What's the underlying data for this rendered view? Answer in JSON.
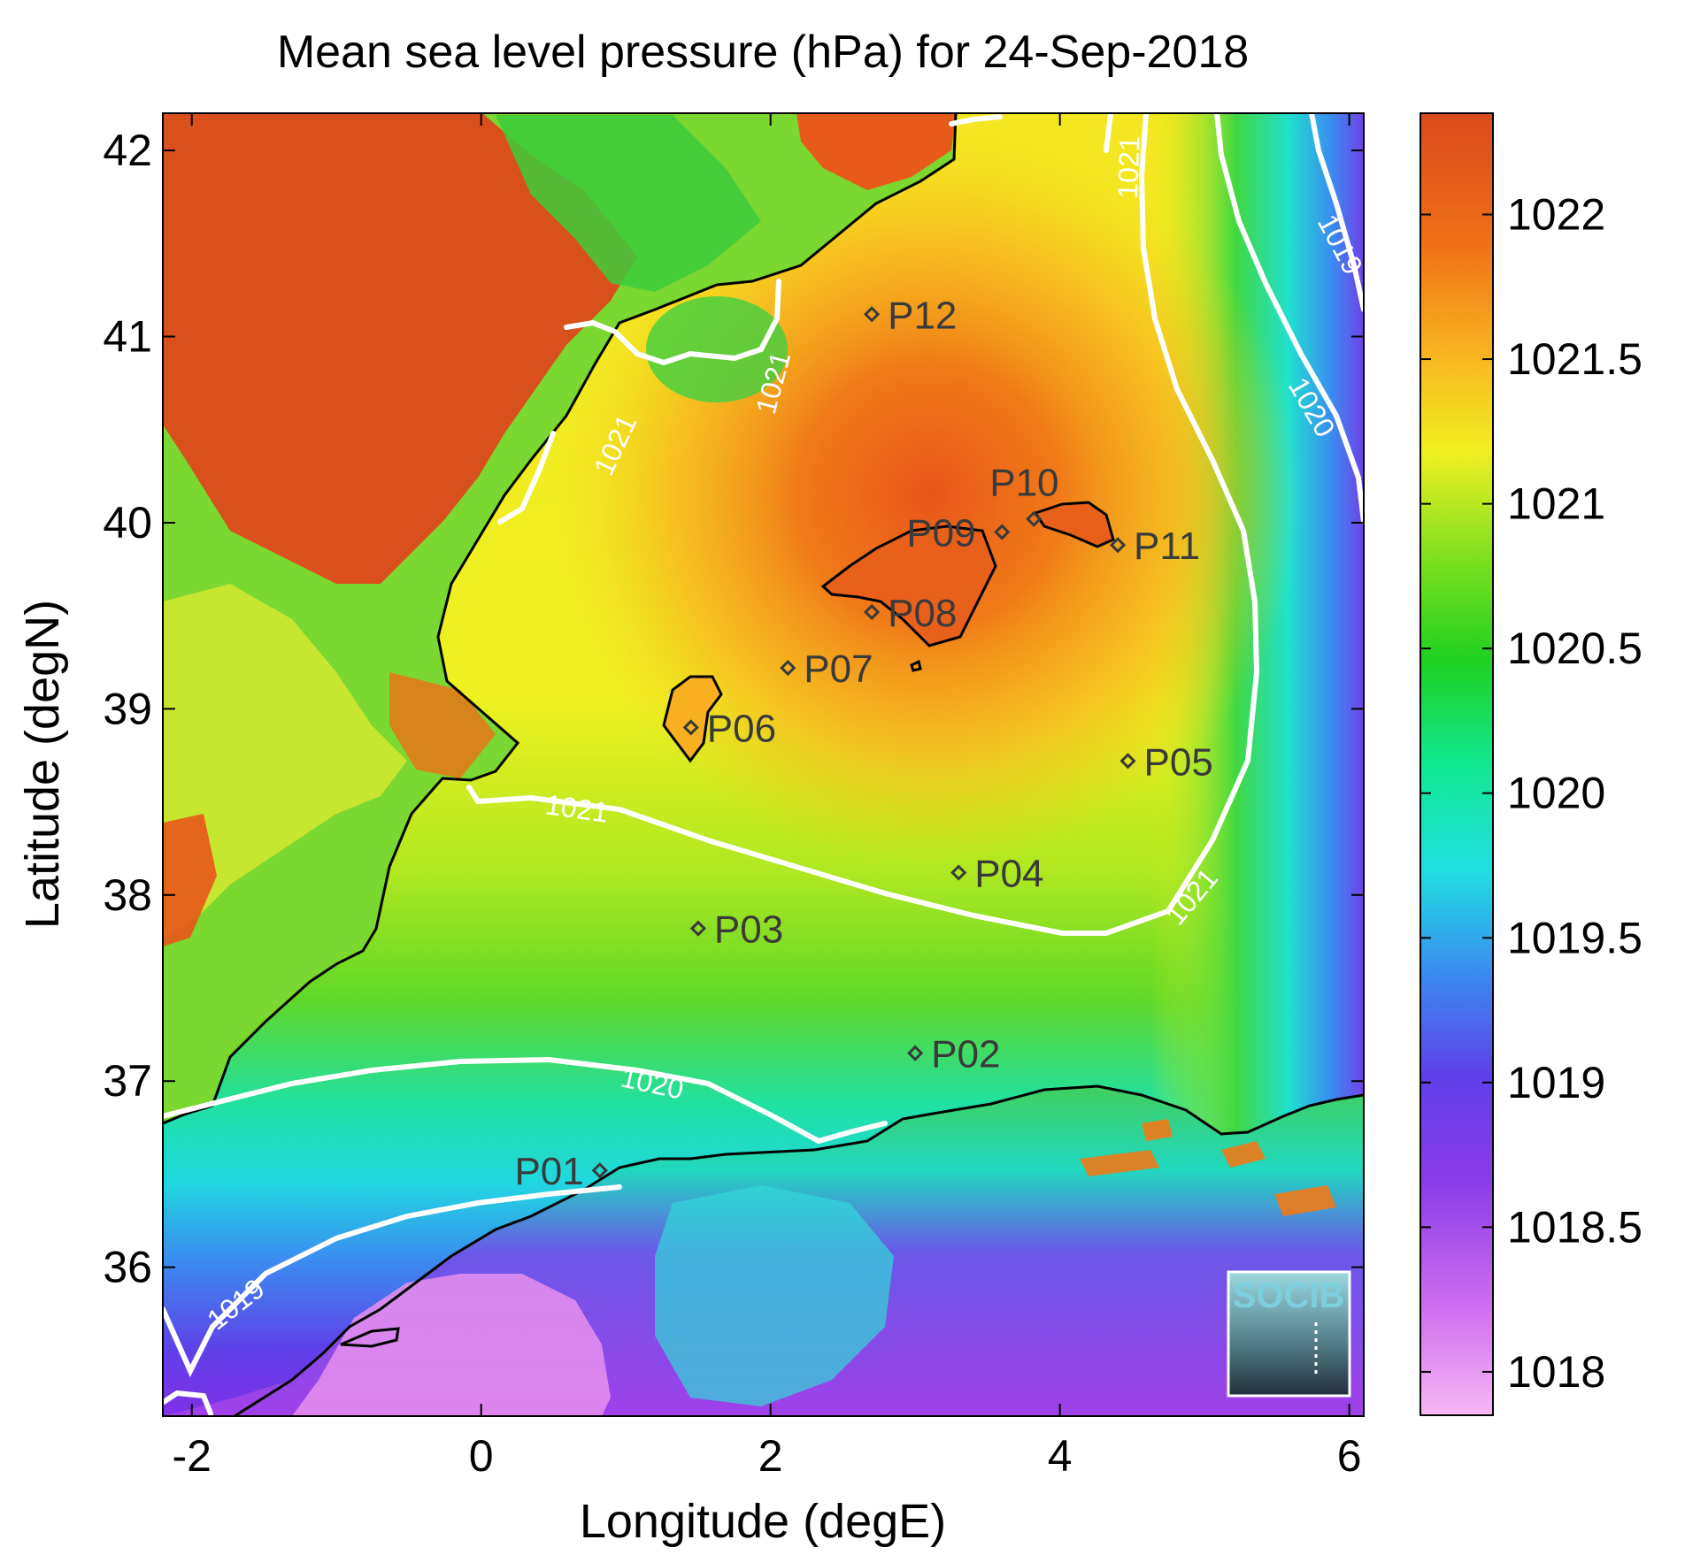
{
  "title": "Mean sea level pressure (hPa) for 24-Sep-2018",
  "xlabel": "Longitude (degE)",
  "ylabel": "Latitude (degN)",
  "x_ticks": [
    "-2",
    "0",
    "2",
    "4",
    "6"
  ],
  "y_ticks": [
    "36",
    "37",
    "38",
    "39",
    "40",
    "41",
    "42"
  ],
  "colorbar_ticks": [
    "1018",
    "1018.5",
    "1019",
    "1019.5",
    "1020",
    "1020.5",
    "1021",
    "1021.5",
    "1022"
  ],
  "contour_labels": [
    "1021",
    "1021",
    "1021",
    "1021",
    "1021",
    "1020",
    "1019",
    "1020",
    "1019"
  ],
  "logo_text": "SOCIB",
  "chart_data": {
    "type": "heatmap",
    "title": "Mean sea level pressure (hPa) for 24-Sep-2018",
    "xlabel": "Longitude (degE)",
    "ylabel": "Latitude (degN)",
    "xlim": [
      -2.2,
      6.1
    ],
    "ylim": [
      35.2,
      42.2
    ],
    "colorbar_range": [
      1017.85,
      1022.35
    ],
    "colorbar_ticks": [
      1018,
      1018.5,
      1019,
      1019.5,
      1020,
      1020.5,
      1021,
      1021.5,
      1022
    ],
    "contour_levels": [
      1019,
      1020,
      1021
    ],
    "stations": [
      {
        "name": "P01",
        "lon": 0.82,
        "lat": 36.52
      },
      {
        "name": "P02",
        "lon": 3.0,
        "lat": 37.15
      },
      {
        "name": "P03",
        "lon": 1.5,
        "lat": 37.82
      },
      {
        "name": "P04",
        "lon": 3.3,
        "lat": 38.12
      },
      {
        "name": "P05",
        "lon": 4.47,
        "lat": 38.72
      },
      {
        "name": "P06",
        "lon": 1.45,
        "lat": 38.9
      },
      {
        "name": "P07",
        "lon": 2.12,
        "lat": 39.22
      },
      {
        "name": "P08",
        "lon": 2.7,
        "lat": 39.52
      },
      {
        "name": "P09",
        "lon": 3.6,
        "lat": 39.95
      },
      {
        "name": "P10",
        "lon": 3.82,
        "lat": 40.02
      },
      {
        "name": "P11",
        "lon": 4.4,
        "lat": 39.88
      },
      {
        "name": "P12",
        "lon": 2.7,
        "lat": 41.12
      }
    ]
  },
  "colors": {
    "land_high": "#d9501c",
    "sea_yellow": "#f2f020",
    "sea_green": "#2ad02a",
    "colorbar_gradient": [
      "#f6b8f4",
      "#c040f0",
      "#6040e8",
      "#3a8cf0",
      "#20e0e0",
      "#10e890",
      "#20d020",
      "#80e020",
      "#f0f020",
      "#f8b020",
      "#f07018",
      "#d94a1c"
    ]
  }
}
